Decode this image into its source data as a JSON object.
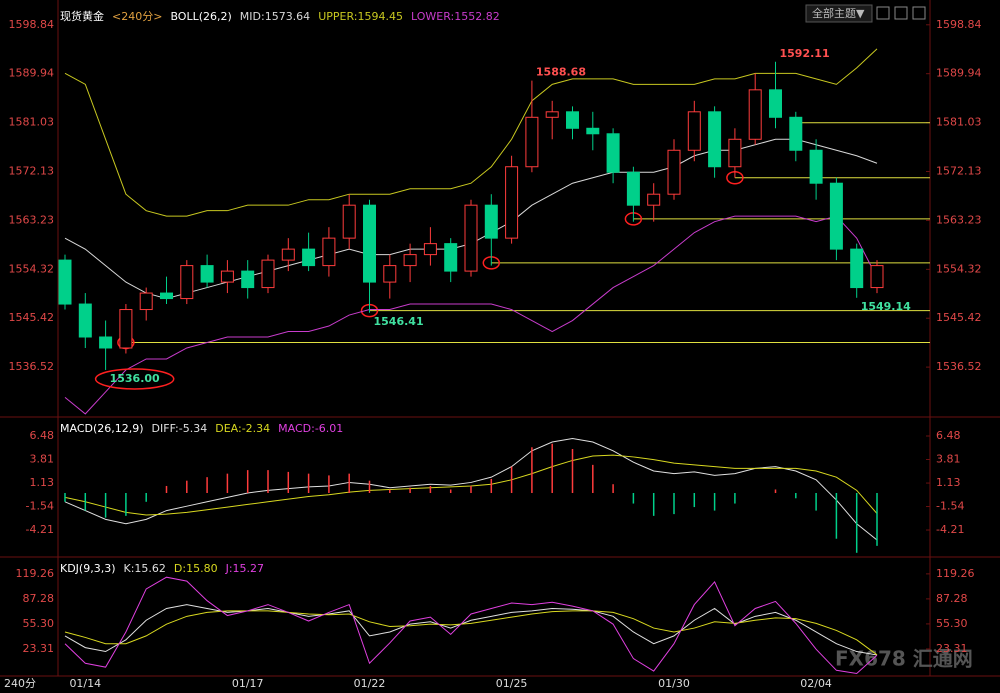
{
  "ui": {
    "theme_menu": "全部主题▼",
    "period": "240分",
    "watermark": "FX678 汇通网"
  },
  "chart_data": [
    {
      "type": "candlestick",
      "title": "现货黄金",
      "subtitle": "<240分>",
      "indicator": "BOLL(26,2)",
      "categories": [
        null,
        "01/14",
        null,
        null,
        null,
        null,
        null,
        null,
        null,
        "01/17",
        null,
        null,
        null,
        null,
        null,
        "01/22",
        null,
        null,
        null,
        null,
        null,
        null,
        "01/25",
        null,
        null,
        null,
        null,
        null,
        null,
        null,
        "01/30",
        null,
        null,
        null,
        null,
        null,
        null,
        "02/04",
        null,
        null,
        null
      ],
      "open": [
        1556,
        1548,
        1542,
        1540,
        1547,
        1550,
        1549,
        1555,
        1552,
        1554,
        1551,
        1556,
        1558,
        1555,
        1560,
        1566,
        1552,
        1555,
        1557,
        1559,
        1554,
        1566,
        1560,
        1573,
        1582,
        1583,
        1580,
        1579,
        1572,
        1566,
        1568,
        1576,
        1583,
        1573,
        1578,
        1587,
        1582,
        1576,
        1570,
        1558,
        1551
      ],
      "high": [
        1557,
        1550,
        1545,
        1548,
        1551,
        1553,
        1556,
        1557,
        1556,
        1556,
        1557,
        1560,
        1561,
        1562,
        1568,
        1567,
        1557,
        1559,
        1562,
        1560,
        1567,
        1568,
        1575,
        1588.68,
        1585,
        1584,
        1583,
        1580,
        1573,
        1570,
        1578,
        1585,
        1584,
        1580,
        1590,
        1592.11,
        1583,
        1578,
        1571,
        1559,
        1556
      ],
      "low": [
        1547,
        1540,
        1536.0,
        1539,
        1545,
        1548,
        1548,
        1551,
        1550,
        1549,
        1550,
        1554,
        1554,
        1553,
        1558,
        1546.41,
        1549,
        1552,
        1555,
        1552,
        1553,
        1555,
        1559,
        1572,
        1578,
        1578,
        1576,
        1570,
        1563,
        1563,
        1567,
        1574,
        1571,
        1571,
        1577,
        1580,
        1574,
        1567,
        1556,
        1549.14,
        1550
      ],
      "close": [
        1548,
        1542,
        1540,
        1547,
        1550,
        1549,
        1555,
        1552,
        1554,
        1551,
        1556,
        1558,
        1555,
        1560,
        1566,
        1552,
        1555,
        1557,
        1559,
        1554,
        1566,
        1560,
        1573,
        1582,
        1583,
        1580,
        1579,
        1572,
        1566,
        1568,
        1576,
        1583,
        1573,
        1578,
        1587,
        1582,
        1576,
        1570,
        1558,
        1551,
        1555
      ],
      "up_color": "#ff3c3c",
      "down_color": "#00d08a",
      "series": [
        {
          "name": "MID:1573.64",
          "color": "#d8d8d8",
          "values": [
            1560,
            1558,
            1555,
            1552,
            1550,
            1549,
            1550,
            1551,
            1552,
            1553,
            1554,
            1555,
            1556,
            1557,
            1558,
            1557,
            1557,
            1558,
            1558,
            1558,
            1559,
            1561,
            1563,
            1566,
            1568,
            1570,
            1571,
            1572,
            1572,
            1572,
            1573,
            1575,
            1576,
            1576,
            1577,
            1578,
            1578,
            1577,
            1576,
            1575,
            1573.64
          ]
        },
        {
          "name": "UPPER:1594.45",
          "color": "#c8c820",
          "values": [
            1590,
            1588,
            1578,
            1568,
            1565,
            1564,
            1564,
            1565,
            1565,
            1566,
            1566,
            1566,
            1567,
            1567,
            1568,
            1568,
            1568,
            1569,
            1569,
            1569,
            1570,
            1573,
            1578,
            1585,
            1588,
            1589,
            1589,
            1589,
            1588,
            1588,
            1588,
            1588,
            1589,
            1589,
            1590,
            1590,
            1590,
            1589,
            1588,
            1591,
            1594.45
          ]
        },
        {
          "name": "LOWER:1552.82",
          "color": "#c83ccc",
          "values": [
            1531,
            1528,
            1532,
            1536,
            1538,
            1538,
            1540,
            1541,
            1542,
            1542,
            1542,
            1543,
            1543,
            1544,
            1546,
            1547,
            1547,
            1548,
            1548,
            1548,
            1548,
            1548,
            1547,
            1545,
            1543,
            1545,
            1548,
            1551,
            1553,
            1555,
            1558,
            1561,
            1563,
            1564,
            1564,
            1564,
            1564,
            1563,
            1564,
            1560,
            1552.82
          ]
        }
      ],
      "ylim": [
        1527.8,
        1601.9
      ],
      "yticks": [
        1536.52,
        1545.42,
        1554.32,
        1563.23,
        1572.13,
        1581.03,
        1589.94,
        1598.84
      ],
      "annotations": [
        {
          "index": 2,
          "of": "low",
          "label": "1536.00",
          "circled": true
        },
        {
          "index": 15,
          "of": "low",
          "label": "1546.41",
          "circled": false
        },
        {
          "index": 23,
          "of": "high",
          "label": "1588.68",
          "circled": false
        },
        {
          "index": 35,
          "of": "high",
          "label": "1592.11",
          "circled": false
        },
        {
          "index": 39,
          "of": "low",
          "label": "1549.14",
          "circled": false
        }
      ],
      "levels": [
        {
          "x": 3,
          "y": 1541,
          "circle": true
        },
        {
          "x": 15,
          "y": 1546.8,
          "circle": true
        },
        {
          "x": 21,
          "y": 1555.5,
          "circle": true
        },
        {
          "x": 28,
          "y": 1563.5,
          "circle": true
        },
        {
          "x": 33,
          "y": 1571,
          "circle": true
        },
        {
          "x": 36,
          "y": 1581,
          "circle": false
        }
      ],
      "level_color": "#e0e040"
    },
    {
      "type": "macd",
      "indicator": "MACD(26,12,9)",
      "up_color": "#ff3c3c",
      "down_color": "#00d08a",
      "series": [
        {
          "name": "DIFF:-5.34",
          "color": "#e0e0e0",
          "values": [
            -1,
            -2,
            -3,
            -3.5,
            -3,
            -2,
            -1.5,
            -1,
            -0.5,
            0,
            0.3,
            0.5,
            0.7,
            0.8,
            1.2,
            1.0,
            0.6,
            0.8,
            1.0,
            0.9,
            1.2,
            1.8,
            3.0,
            4.8,
            5.8,
            6.2,
            5.8,
            4.8,
            3.5,
            2.5,
            2.2,
            2.4,
            2.0,
            2.2,
            2.8,
            3.0,
            2.5,
            1.5,
            -0.8,
            -3.5,
            -5.34
          ]
        },
        {
          "name": "DEA:-2.34",
          "color": "#d8d820",
          "values": [
            -0.5,
            -1,
            -1.6,
            -2.2,
            -2.5,
            -2.4,
            -2.2,
            -1.9,
            -1.6,
            -1.3,
            -1,
            -0.7,
            -0.4,
            -0.2,
            0.1,
            0.3,
            0.4,
            0.5,
            0.6,
            0.7,
            0.8,
            1.0,
            1.5,
            2.2,
            3.0,
            3.7,
            4.2,
            4.3,
            4.1,
            3.8,
            3.4,
            3.2,
            3.0,
            2.8,
            2.8,
            2.8,
            2.8,
            2.5,
            1.8,
            0.3,
            -2.34
          ]
        },
        {
          "name": "MACD:-6.01",
          "color": "#e040e0",
          "kind": "histogram",
          "values": [
            -1,
            -2,
            -2.8,
            -2.6,
            -1,
            0.8,
            1.4,
            1.8,
            2.2,
            2.6,
            2.6,
            2.4,
            2.2,
            2.0,
            2.2,
            1.4,
            0.4,
            0.6,
            0.8,
            0.4,
            0.8,
            1.6,
            3.0,
            5.2,
            5.6,
            5.0,
            3.2,
            1.0,
            -1.2,
            -2.6,
            -2.4,
            -1.6,
            -2.0,
            -1.2,
            0,
            0.4,
            -0.6,
            -2.0,
            -5.2,
            -6.8,
            -6.01
          ]
        }
      ],
      "ylim": [
        -7.05,
        8.3
      ],
      "yticks": [
        -4.21,
        -1.54,
        1.13,
        3.81,
        6.48
      ]
    },
    {
      "type": "kdj",
      "indicator": "KDJ(9,3,3)",
      "series": [
        {
          "name": "K:15.62",
          "color": "#e0e0e0",
          "values": [
            40,
            25,
            20,
            35,
            60,
            75,
            80,
            75,
            70,
            72,
            75,
            70,
            65,
            68,
            72,
            40,
            45,
            55,
            58,
            50,
            60,
            65,
            70,
            72,
            75,
            74,
            72,
            65,
            45,
            30,
            40,
            60,
            75,
            55,
            65,
            70,
            60,
            45,
            30,
            20,
            15.62
          ]
        },
        {
          "name": "D:15.80",
          "color": "#d8d820",
          "values": [
            45,
            38,
            30,
            30,
            40,
            55,
            65,
            70,
            72,
            72,
            72,
            70,
            68,
            67,
            68,
            58,
            52,
            53,
            55,
            54,
            56,
            60,
            64,
            68,
            71,
            72,
            72,
            70,
            62,
            50,
            45,
            50,
            58,
            56,
            60,
            63,
            62,
            56,
            47,
            35,
            15.8
          ]
        },
        {
          "name": "J:15.27",
          "color": "#e040e0",
          "values": [
            30,
            5,
            0,
            45,
            100,
            115,
            110,
            85,
            66,
            72,
            80,
            70,
            59,
            70,
            80,
            5,
            31,
            59,
            64,
            42,
            68,
            75,
            82,
            80,
            83,
            78,
            72,
            55,
            11,
            -5,
            30,
            80,
            109,
            53,
            75,
            84,
            56,
            23,
            -4,
            -8,
            15.27
          ]
        }
      ],
      "ylim": [
        -10,
        137
      ],
      "yticks": [
        23.31,
        {
          "value": 55.3,
          "label": "55.30"
        },
        87.28,
        119.26
      ]
    }
  ]
}
